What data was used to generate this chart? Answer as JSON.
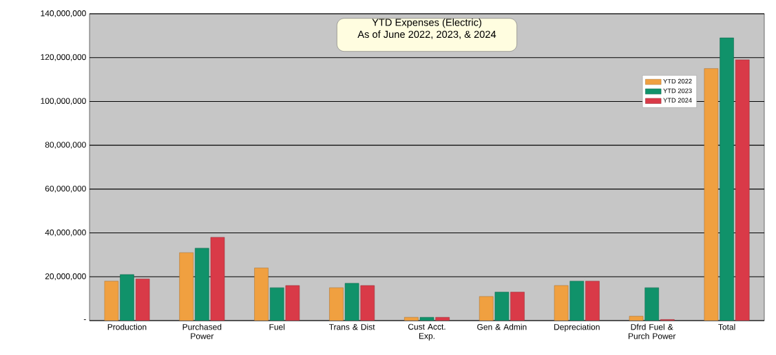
{
  "chart_data": {
    "type": "bar",
    "title": "YTD Expenses (Electric)\nAs of June 2022, 2023, & 2024",
    "categories": [
      "Production",
      "Purchased Power",
      "Fuel",
      "Trans & Dist",
      "Cust Acct. Exp.",
      "Gen & Admin",
      "Depreciation",
      "Dfrd Fuel & Purch Power",
      "Total"
    ],
    "series": [
      {
        "name": "YTD 2022",
        "color": "#f0a040",
        "values": [
          18000000,
          31000000,
          24000000,
          15000000,
          1500000,
          11000000,
          16000000,
          2000000,
          115000000
        ]
      },
      {
        "name": "YTD 2023",
        "color": "#10926a",
        "values": [
          21000000,
          33000000,
          15000000,
          17000000,
          1500000,
          13000000,
          18000000,
          15000000,
          129000000
        ]
      },
      {
        "name": "YTD 2024",
        "color": "#d93a48",
        "values": [
          19000000,
          38000000,
          16000000,
          16000000,
          1500000,
          13000000,
          18000000,
          500000,
          119000000
        ]
      }
    ],
    "ylim": [
      0,
      140000000
    ],
    "yticks": [
      {
        "value": 0,
        "label": "-"
      },
      {
        "value": 20000000,
        "label": "20,000,000"
      },
      {
        "value": 40000000,
        "label": "40,000,000"
      },
      {
        "value": 60000000,
        "label": "60,000,000"
      },
      {
        "value": 80000000,
        "label": "80,000,000"
      },
      {
        "value": 100000000,
        "label": "100,000,000"
      },
      {
        "value": 120000000,
        "label": "120,000,000"
      },
      {
        "value": 140000000,
        "label": "140,000,000"
      }
    ],
    "grid": "y",
    "legend": "top right"
  }
}
